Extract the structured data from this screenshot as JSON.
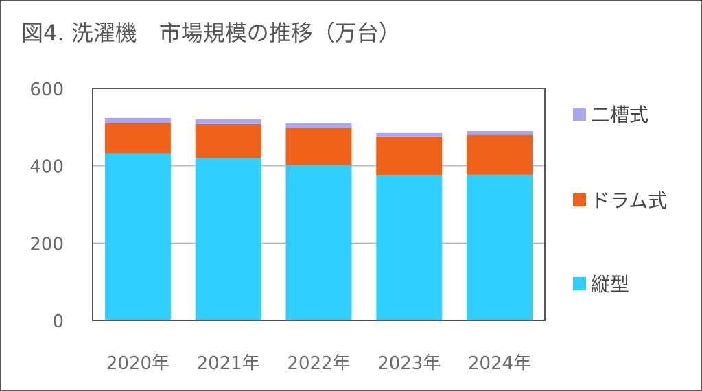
{
  "chart_data": {
    "type": "bar",
    "stacked": true,
    "title": "図4. 洗濯機　市場規模の推移（万台）",
    "categories": [
      "2020年",
      "2021年",
      "2022年",
      "2023年",
      "2024年"
    ],
    "series": [
      {
        "name": "縦型",
        "color": "#2ecfff",
        "values": [
          432,
          420,
          402,
          376,
          377
        ]
      },
      {
        "name": "ドラム式",
        "color": "#f0621a",
        "values": [
          78,
          88,
          96,
          100,
          103
        ]
      },
      {
        "name": "二槽式",
        "color": "#a8a8f0",
        "values": [
          14,
          12,
          12,
          9,
          10
        ]
      }
    ],
    "ylim": [
      0,
      600
    ],
    "yticks": [
      0,
      200,
      400,
      600
    ],
    "grid": true,
    "legend_position": "right",
    "legend_order": [
      "二槽式",
      "ドラム式",
      "縦型"
    ]
  }
}
